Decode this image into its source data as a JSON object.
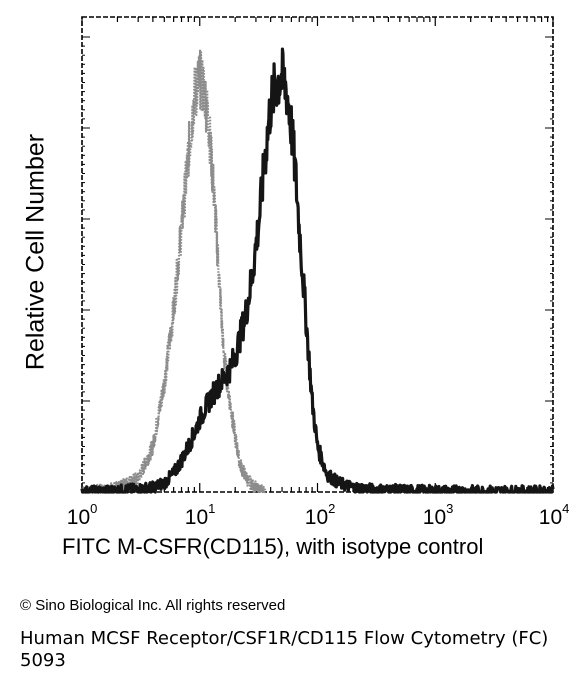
{
  "chart_data": {
    "type": "area",
    "xlabel": "FITC M-CSFR(CD115), with isotype control",
    "ylabel": "Relative Cell Number",
    "xscale": "log",
    "xlim": [
      1,
      10000
    ],
    "ylim": [
      0,
      100
    ],
    "x_ticks": [
      {
        "base": "10",
        "exp": "0"
      },
      {
        "base": "10",
        "exp": "1"
      },
      {
        "base": "10",
        "exp": "2"
      },
      {
        "base": "10",
        "exp": "3"
      },
      {
        "base": "10",
        "exp": "4"
      }
    ],
    "series": [
      {
        "style": "dotted-light",
        "color": "#8c8c8c",
        "x": [
          1,
          1.5,
          2,
          3,
          4,
          5,
          6,
          7,
          8,
          9,
          10,
          11,
          12,
          13,
          14,
          15,
          16,
          18,
          20,
          22,
          25,
          28,
          32,
          36
        ],
        "y": [
          0,
          0.5,
          1,
          3,
          10,
          24,
          40,
          58,
          74,
          87,
          91,
          88,
          80,
          68,
          55,
          42,
          30,
          20,
          12,
          6,
          3,
          1.5,
          0.5,
          0
        ]
      },
      {
        "style": "solid-dark",
        "color": "#151515",
        "x": [
          1,
          2,
          3,
          4,
          5,
          6,
          7,
          8,
          9,
          10,
          12,
          14,
          16,
          18,
          20,
          22,
          25,
          28,
          32,
          36,
          40,
          45,
          50,
          55,
          60,
          65,
          70,
          80,
          90,
          100,
          120,
          150,
          200,
          300,
          1000,
          10000
        ],
        "y": [
          0,
          0.3,
          0.6,
          1,
          2,
          4,
          7,
          10,
          13,
          16,
          20,
          23,
          25,
          27,
          30,
          34,
          40,
          48,
          60,
          74,
          85,
          90,
          91,
          88,
          80,
          70,
          58,
          38,
          20,
          10,
          4,
          2,
          1,
          0.5,
          0.2,
          0.1
        ]
      }
    ]
  },
  "copyright": "© Sino Biological Inc. All rights reserved",
  "caption": "Human MCSF Receptor/CSF1R/CD115 Flow Cytometry (FC) 5093"
}
